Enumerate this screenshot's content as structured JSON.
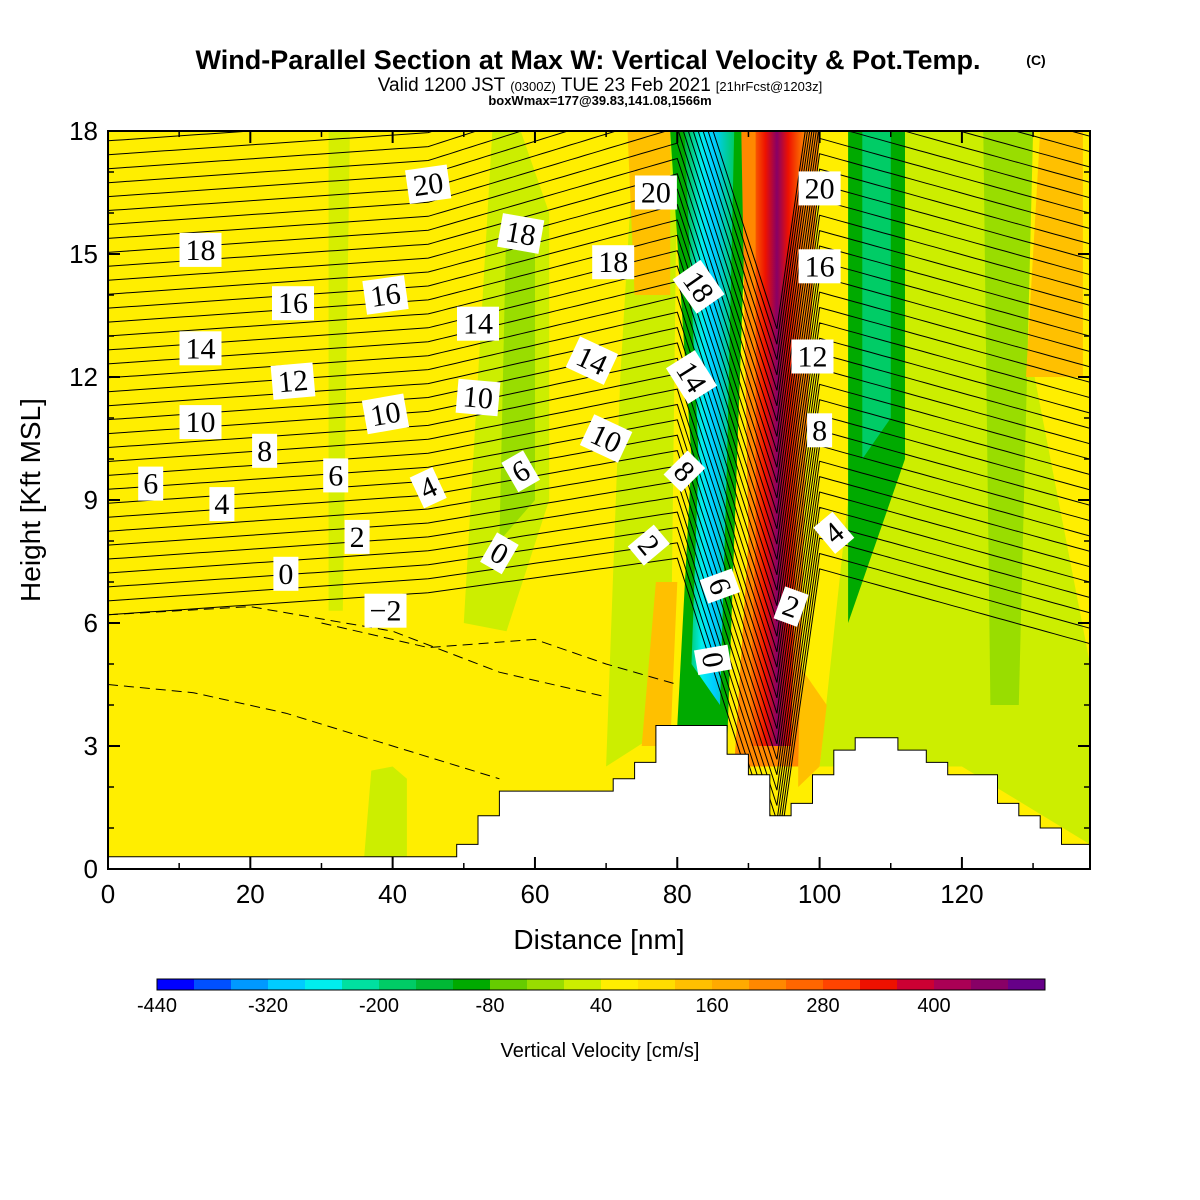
{
  "header": {
    "title": "Wind-Parallel Section at Max W: Vertical Velocity & Pot.Temp.",
    "copyright": "(C)",
    "valid_prefix": "Valid 1200 JST",
    "valid_zulu": "(0300Z)",
    "valid_date": "TUE 23 Feb 2021",
    "forecast": "[21hrFcst@1203z]",
    "boxinfo": "boxWmax=177@39.83,141.08,1566m"
  },
  "chart_data": {
    "type": "heatmap",
    "xlabel": "Distance [nm]",
    "ylabel": "Height [Kft MSL]",
    "xlim": [
      0,
      138
    ],
    "ylim": [
      0,
      18
    ],
    "x_ticks": [
      0,
      20,
      40,
      60,
      80,
      100,
      120
    ],
    "y_ticks": [
      0,
      3,
      6,
      9,
      12,
      15,
      18
    ],
    "colorbar": {
      "label": "Vertical Velocity [cm/s]",
      "tick_labels": [
        "-440",
        "-320",
        "-200",
        "-80",
        "40",
        "160",
        "280",
        "400"
      ],
      "levels_min": -440,
      "level_step": 40,
      "colors": [
        "#0000ff",
        "#0050ff",
        "#0099ff",
        "#00ccff",
        "#00eeee",
        "#00e0a0",
        "#00cc66",
        "#00b835",
        "#00aa00",
        "#66cc00",
        "#99dd00",
        "#ccee00",
        "#ffee00",
        "#ffdd00",
        "#ffc000",
        "#ffaa00",
        "#ff8800",
        "#ff6600",
        "#ff4400",
        "#ee1100",
        "#cc0033",
        "#aa0055",
        "#880066",
        "#660088"
      ]
    },
    "terrain_nm_kft": [
      [
        0,
        0.3
      ],
      [
        49,
        0.3
      ],
      [
        49,
        0.6
      ],
      [
        52,
        0.6
      ],
      [
        52,
        1.3
      ],
      [
        55,
        1.3
      ],
      [
        55,
        1.9
      ],
      [
        71,
        1.9
      ],
      [
        71,
        2.2
      ],
      [
        74,
        2.2
      ],
      [
        74,
        2.6
      ],
      [
        77,
        2.6
      ],
      [
        77,
        3.5
      ],
      [
        87,
        3.5
      ],
      [
        87,
        2.8
      ],
      [
        90,
        2.8
      ],
      [
        90,
        2.3
      ],
      [
        93,
        2.3
      ],
      [
        93,
        1.3
      ],
      [
        96,
        1.3
      ],
      [
        96,
        1.6
      ],
      [
        99,
        1.6
      ],
      [
        99,
        2.3
      ],
      [
        102,
        2.3
      ],
      [
        102,
        2.9
      ],
      [
        105,
        2.9
      ],
      [
        105,
        3.2
      ],
      [
        111,
        3.2
      ],
      [
        111,
        2.9
      ],
      [
        115,
        2.9
      ],
      [
        115,
        2.6
      ],
      [
        118,
        2.6
      ],
      [
        118,
        2.3
      ],
      [
        125,
        2.3
      ],
      [
        125,
        1.6
      ],
      [
        128,
        1.6
      ],
      [
        128,
        1.3
      ],
      [
        131,
        1.3
      ],
      [
        131,
        1.0
      ],
      [
        134,
        1.0
      ],
      [
        134,
        0.6
      ],
      [
        138,
        0.6
      ]
    ],
    "contour_labels": [
      {
        "text": "20",
        "x": 45,
        "y": 16.7,
        "rot": -8
      },
      {
        "text": "18",
        "x": 13,
        "y": 15.1,
        "rot": 0
      },
      {
        "text": "18",
        "x": 58,
        "y": 15.5,
        "rot": 10
      },
      {
        "text": "18",
        "x": 71,
        "y": 14.8,
        "rot": 0
      },
      {
        "text": "20",
        "x": 77,
        "y": 16.5,
        "rot": 0
      },
      {
        "text": "18",
        "x": 83,
        "y": 14.2,
        "rot": 55
      },
      {
        "text": "20",
        "x": 100,
        "y": 16.6,
        "rot": 0
      },
      {
        "text": "16",
        "x": 26,
        "y": 13.8,
        "rot": 0
      },
      {
        "text": "16",
        "x": 39,
        "y": 14.0,
        "rot": -8
      },
      {
        "text": "16",
        "x": 100,
        "y": 14.7,
        "rot": 0
      },
      {
        "text": "14",
        "x": 13,
        "y": 12.7,
        "rot": 0
      },
      {
        "text": "14",
        "x": 52,
        "y": 13.3,
        "rot": 0
      },
      {
        "text": "14",
        "x": 68,
        "y": 12.4,
        "rot": 25
      },
      {
        "text": "14",
        "x": 82,
        "y": 12.0,
        "rot": 58
      },
      {
        "text": "12",
        "x": 26,
        "y": 11.9,
        "rot": -5
      },
      {
        "text": "12",
        "x": 99,
        "y": 12.5,
        "rot": 0
      },
      {
        "text": "10",
        "x": 13,
        "y": 10.9,
        "rot": 0
      },
      {
        "text": "10",
        "x": 39,
        "y": 11.1,
        "rot": -10
      },
      {
        "text": "10",
        "x": 52,
        "y": 11.5,
        "rot": 5
      },
      {
        "text": "10",
        "x": 70,
        "y": 10.5,
        "rot": 25
      },
      {
        "text": "8",
        "x": 22,
        "y": 10.2,
        "rot": 0
      },
      {
        "text": "8",
        "x": 81,
        "y": 9.7,
        "rot": 45
      },
      {
        "text": "8",
        "x": 100,
        "y": 10.7,
        "rot": 0
      },
      {
        "text": "6",
        "x": 6,
        "y": 9.4,
        "rot": 0
      },
      {
        "text": "6",
        "x": 32,
        "y": 9.6,
        "rot": 0
      },
      {
        "text": "6",
        "x": 58,
        "y": 9.7,
        "rot": -30
      },
      {
        "text": "6",
        "x": 86,
        "y": 6.9,
        "rot": 70
      },
      {
        "text": "4",
        "x": 16,
        "y": 8.9,
        "rot": 0
      },
      {
        "text": "4",
        "x": 45,
        "y": 9.3,
        "rot": -25
      },
      {
        "text": "4",
        "x": 102,
        "y": 8.2,
        "rot": -40
      },
      {
        "text": "2",
        "x": 35,
        "y": 8.1,
        "rot": 0
      },
      {
        "text": "2",
        "x": 76,
        "y": 7.9,
        "rot": 50
      },
      {
        "text": "2",
        "x": 96,
        "y": 6.4,
        "rot": 20
      },
      {
        "text": "0",
        "x": 25,
        "y": 7.2,
        "rot": 0
      },
      {
        "text": "0",
        "x": 55,
        "y": 7.7,
        "rot": 30
      },
      {
        "text": "0",
        "x": 85,
        "y": 5.1,
        "rot": 80
      },
      {
        "text": "−2",
        "x": 39,
        "y": 6.3,
        "rot": 0
      }
    ]
  }
}
